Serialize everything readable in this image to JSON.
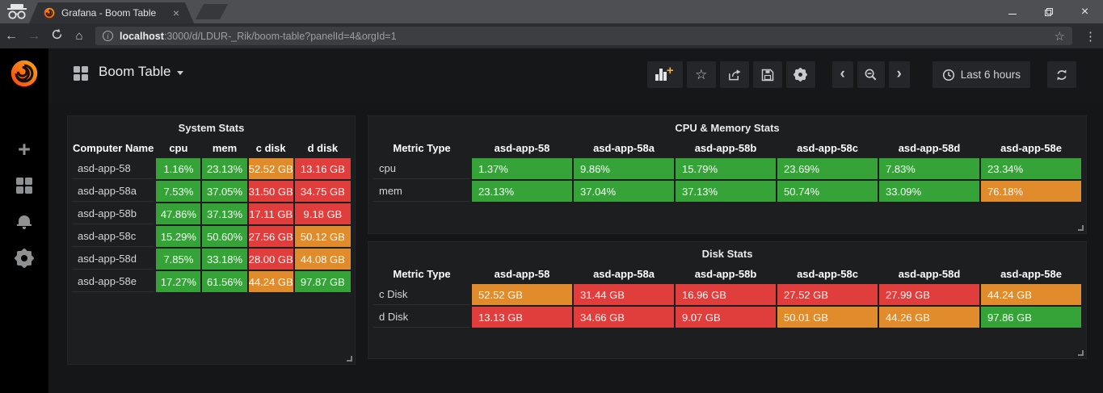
{
  "browser": {
    "tab_title": "Grafana - Boom Table",
    "url": {
      "host": "localhost",
      "rest": ":3000/d/LDUR-_Rik/boom-table?panelId=4&orgId=1"
    }
  },
  "icons": {
    "tab_close": "×",
    "window_close": "×",
    "back": "←",
    "forward": "→",
    "home": "⌂",
    "info": "i",
    "bookmark_star": "☆",
    "menu_dots": "⋮",
    "sidebar_plus": "+",
    "toolbar_star": "☆",
    "chevron_left": "‹",
    "chevron_right": "›"
  },
  "header": {
    "title": "Boom Table",
    "time_range": "Last 6 hours"
  },
  "colors": {
    "green": "#36a338",
    "orange": "#e08b2c",
    "red": "#e03e3c",
    "accent_orange": "#f8b133"
  },
  "panels": [
    {
      "id": "system-stats",
      "title": "System Stats",
      "value_align": "center",
      "columns": [
        "Computer Name",
        "cpu",
        "mem",
        "c disk",
        "d disk"
      ],
      "rows": [
        {
          "label": "asd-app-58",
          "cells": [
            [
              "1.16%",
              "green"
            ],
            [
              "23.13%",
              "green"
            ],
            [
              "52.52 GB",
              "orange"
            ],
            [
              "13.16 GB",
              "red"
            ]
          ]
        },
        {
          "label": "asd-app-58a",
          "cells": [
            [
              "7.53%",
              "green"
            ],
            [
              "37.05%",
              "green"
            ],
            [
              "31.50 GB",
              "red"
            ],
            [
              "34.75 GB",
              "red"
            ]
          ]
        },
        {
          "label": "asd-app-58b",
          "cells": [
            [
              "47.86%",
              "green"
            ],
            [
              "37.13%",
              "green"
            ],
            [
              "17.11 GB",
              "red"
            ],
            [
              "9.18 GB",
              "red"
            ]
          ]
        },
        {
          "label": "asd-app-58c",
          "cells": [
            [
              "15.29%",
              "green"
            ],
            [
              "50.60%",
              "green"
            ],
            [
              "27.56 GB",
              "red"
            ],
            [
              "50.12 GB",
              "orange"
            ]
          ]
        },
        {
          "label": "asd-app-58d",
          "cells": [
            [
              "7.85%",
              "green"
            ],
            [
              "33.18%",
              "green"
            ],
            [
              "28.00 GB",
              "red"
            ],
            [
              "44.08 GB",
              "orange"
            ]
          ]
        },
        {
          "label": "asd-app-58e",
          "cells": [
            [
              "17.27%",
              "green"
            ],
            [
              "61.56%",
              "green"
            ],
            [
              "44.24 GB",
              "orange"
            ],
            [
              "97.87 GB",
              "green"
            ]
          ]
        }
      ]
    },
    {
      "id": "cpu-memory-stats",
      "title": "CPU & Memory Stats",
      "value_align": "left",
      "columns": [
        "Metric Type",
        "asd-app-58",
        "asd-app-58a",
        "asd-app-58b",
        "asd-app-58c",
        "asd-app-58d",
        "asd-app-58e"
      ],
      "rows": [
        {
          "label": "cpu",
          "cells": [
            [
              "1.37%",
              "green"
            ],
            [
              "9.86%",
              "green"
            ],
            [
              "15.79%",
              "green"
            ],
            [
              "23.69%",
              "green"
            ],
            [
              "7.83%",
              "green"
            ],
            [
              "23.34%",
              "green"
            ]
          ]
        },
        {
          "label": "mem",
          "cells": [
            [
              "23.13%",
              "green"
            ],
            [
              "37.04%",
              "green"
            ],
            [
              "37.13%",
              "green"
            ],
            [
              "50.74%",
              "green"
            ],
            [
              "33.09%",
              "green"
            ],
            [
              "76.18%",
              "orange"
            ]
          ]
        }
      ]
    },
    {
      "id": "disk-stats",
      "title": "Disk Stats",
      "value_align": "left",
      "columns": [
        "Metric Type",
        "asd-app-58",
        "asd-app-58a",
        "asd-app-58b",
        "asd-app-58c",
        "asd-app-58d",
        "asd-app-58e"
      ],
      "rows": [
        {
          "label": "c Disk",
          "cells": [
            [
              "52.52 GB",
              "orange"
            ],
            [
              "31.44 GB",
              "red"
            ],
            [
              "16.96 GB",
              "red"
            ],
            [
              "27.52 GB",
              "red"
            ],
            [
              "27.99 GB",
              "red"
            ],
            [
              "44.24 GB",
              "orange"
            ]
          ]
        },
        {
          "label": "d Disk",
          "cells": [
            [
              "13.13 GB",
              "red"
            ],
            [
              "34.66 GB",
              "red"
            ],
            [
              "9.07 GB",
              "red"
            ],
            [
              "50.01 GB",
              "orange"
            ],
            [
              "44.26 GB",
              "orange"
            ],
            [
              "97.86 GB",
              "green"
            ]
          ]
        }
      ]
    }
  ]
}
